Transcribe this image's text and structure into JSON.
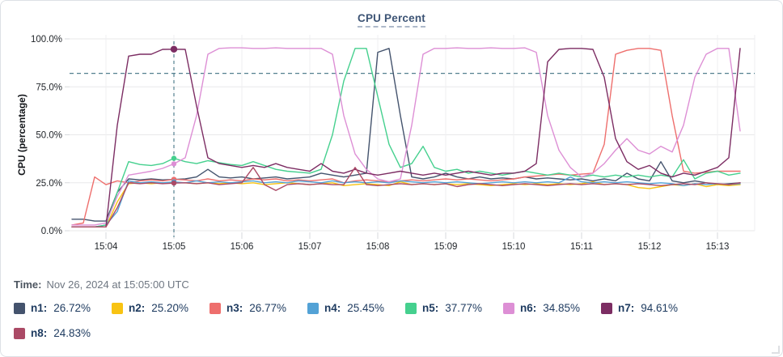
{
  "card": {
    "title": "CPU Percent"
  },
  "footer": {
    "time_label": "Time:",
    "time_value": "Nov 26, 2024 at 15:05:00 UTC"
  },
  "legend": {
    "items": [
      {
        "name": "n1",
        "value": "26.72%",
        "color": "#44536d"
      },
      {
        "name": "n2",
        "value": "25.20%",
        "color": "#f8c313"
      },
      {
        "name": "n3",
        "value": "26.77%",
        "color": "#ee6f6d"
      },
      {
        "name": "n4",
        "value": "25.45%",
        "color": "#53a2d6"
      },
      {
        "name": "n5",
        "value": "37.77%",
        "color": "#45d08e"
      },
      {
        "name": "n6",
        "value": "34.85%",
        "color": "#dd8fd5"
      },
      {
        "name": "n7",
        "value": "94.61%",
        "color": "#7c2d63"
      },
      {
        "name": "n8",
        "value": "24.83%",
        "color": "#ab4a66"
      }
    ]
  },
  "chart_data": {
    "type": "line",
    "title": "CPU Percent",
    "xlabel": "",
    "ylabel": "CPU (percentage)",
    "ylim": [
      0,
      100
    ],
    "grid": true,
    "legend_position": "bottom",
    "y_tick_values": [
      0,
      25,
      50,
      75,
      100
    ],
    "y_tick_labels": [
      "0.0%",
      "25.0%",
      "50.0%",
      "75.0%",
      "100.0%"
    ],
    "x_tick_labels": [
      "15:04",
      "15:05",
      "15:06",
      "15:07",
      "15:08",
      "15:09",
      "15:10",
      "15:11",
      "15:12",
      "15:13"
    ],
    "x_tick_indices": [
      3,
      9,
      15,
      21,
      27,
      33,
      39,
      45,
      51,
      57
    ],
    "x_start_time": "15:03:30",
    "x_step_seconds": 10,
    "threshold_percent": 82,
    "guide_color": "#53808f",
    "crosshair": {
      "time": "15:05:00 UTC",
      "index": 9
    },
    "series": [
      {
        "name": "n1",
        "color": "#44536d",
        "values": [
          6,
          6,
          5,
          5,
          20,
          27,
          26.5,
          27,
          26.5,
          26.72,
          27,
          28,
          32,
          28,
          27.5,
          28,
          27,
          27.5,
          28,
          27,
          27.5,
          28,
          30,
          29,
          28,
          29,
          30,
          93,
          95,
          60,
          28,
          27,
          28,
          30,
          28,
          27,
          28,
          27,
          27.5,
          27,
          28,
          27,
          27.5,
          27,
          26.5,
          27,
          26,
          27,
          26,
          30,
          27,
          26,
          36,
          26,
          25,
          26,
          25,
          24,
          24.5,
          25
        ]
      },
      {
        "name": "n2",
        "color": "#f8c313",
        "values": [
          2,
          2,
          2,
          2,
          15,
          24.5,
          25,
          24.5,
          25,
          25.2,
          25,
          24.5,
          25,
          24.5,
          25,
          24.5,
          25,
          24,
          24.5,
          25,
          24.5,
          24,
          24.5,
          25,
          23.5,
          24,
          24.5,
          24,
          23.5,
          25.5,
          24,
          24.5,
          24,
          24.5,
          24,
          24.5,
          24,
          23.5,
          24,
          24.5,
          24,
          24.5,
          24,
          24.5,
          24,
          24.5,
          25.5,
          24,
          24.5,
          24,
          22.5,
          22,
          23,
          24,
          23.5,
          24.5,
          23,
          24,
          23.5,
          24
        ]
      },
      {
        "name": "n3",
        "color": "#ee6f6d",
        "values": [
          3,
          4,
          28,
          24,
          26,
          25,
          26,
          26.5,
          26,
          26.77,
          26.5,
          26,
          27,
          26,
          26.5,
          26,
          27,
          26.5,
          27,
          26,
          26.5,
          26,
          26.5,
          27,
          25,
          26,
          26.5,
          26,
          25.5,
          26,
          26.5,
          26,
          26.5,
          27,
          26.5,
          27,
          26.5,
          26,
          26.5,
          27,
          28,
          28.5,
          29,
          29.5,
          29,
          29.5,
          30,
          45,
          92,
          94,
          95,
          95,
          94,
          60,
          31,
          30,
          30.5,
          31,
          31,
          31
        ]
      },
      {
        "name": "n4",
        "color": "#53a2d6",
        "values": [
          2,
          2,
          2,
          3,
          10,
          26,
          25,
          25.5,
          25,
          25.45,
          25,
          26,
          25,
          25.5,
          25,
          25.5,
          26,
          25,
          25.5,
          25,
          26,
          25.5,
          25,
          26,
          25,
          25.5,
          25,
          25.5,
          25,
          26,
          25.5,
          25,
          25.5,
          25,
          25.5,
          25,
          24.5,
          25,
          25.5,
          25,
          25.5,
          25,
          25.5,
          25,
          28,
          25.5,
          25,
          25.5,
          25,
          25.5,
          25,
          24.5,
          25,
          24.5,
          23.5,
          24.5,
          24,
          24.5,
          24,
          24.5
        ]
      },
      {
        "name": "n5",
        "color": "#45d08e",
        "values": [
          2,
          2,
          2,
          3,
          20,
          36,
          34.5,
          34,
          35,
          37.77,
          36,
          35,
          36.5,
          35.5,
          34.5,
          34,
          36,
          34,
          32,
          31,
          30.5,
          30,
          32,
          50,
          78,
          95,
          95,
          70,
          45,
          33,
          35,
          44,
          33,
          31,
          32,
          30,
          31,
          30,
          29,
          30,
          31,
          30,
          29,
          30,
          29,
          28,
          29,
          28,
          29,
          28,
          29,
          28,
          29,
          28,
          37,
          27,
          30,
          31,
          29,
          30
        ]
      },
      {
        "name": "n6",
        "color": "#dd8fd5",
        "values": [
          3,
          3,
          3,
          4,
          18,
          29,
          30,
          31,
          32.5,
          34.85,
          38,
          60,
          92,
          95,
          95.3,
          95.3,
          95,
          95,
          95.3,
          95,
          95,
          95,
          95,
          92,
          60,
          40,
          32,
          27,
          25.5,
          27,
          55,
          92,
          95,
          95,
          95.3,
          95,
          95,
          95.3,
          95,
          95,
          95.3,
          93,
          60,
          42,
          33,
          28,
          30,
          35,
          42,
          48,
          42,
          40,
          44,
          41,
          55,
          80,
          92,
          95,
          95,
          52
        ]
      },
      {
        "name": "n7",
        "color": "#7c2d63",
        "values": [
          2,
          2,
          2,
          2,
          55,
          91,
          92,
          92,
          94.5,
          94.61,
          94.5,
          65,
          38,
          35,
          34,
          33,
          34,
          33,
          35,
          33,
          32,
          31,
          35,
          31,
          30,
          32,
          30,
          29,
          30,
          31,
          30,
          29,
          30,
          29,
          30,
          31,
          30,
          29,
          30,
          30,
          31,
          35,
          88,
          94.5,
          95,
          95,
          94.5,
          80,
          48,
          36,
          32,
          34,
          30,
          28,
          30,
          29,
          31,
          33,
          38,
          95
        ]
      },
      {
        "name": "n8",
        "color": "#ab4a66",
        "values": [
          2,
          2,
          2,
          2,
          12,
          25,
          24.5,
          25,
          24.5,
          24.83,
          25,
          24.5,
          25,
          24,
          24.5,
          25,
          33,
          24,
          21,
          24,
          24.5,
          24,
          24.5,
          24,
          24,
          33,
          24,
          23.5,
          24,
          24.5,
          24,
          24.5,
          24,
          24.5,
          23,
          24,
          24.5,
          24,
          23.5,
          24,
          24.5,
          24,
          23.5,
          24,
          24.5,
          24,
          24.5,
          24,
          24.5,
          24,
          24.5,
          24,
          23.5,
          24,
          24.5,
          24,
          25,
          24.5,
          24,
          25
        ]
      }
    ]
  }
}
